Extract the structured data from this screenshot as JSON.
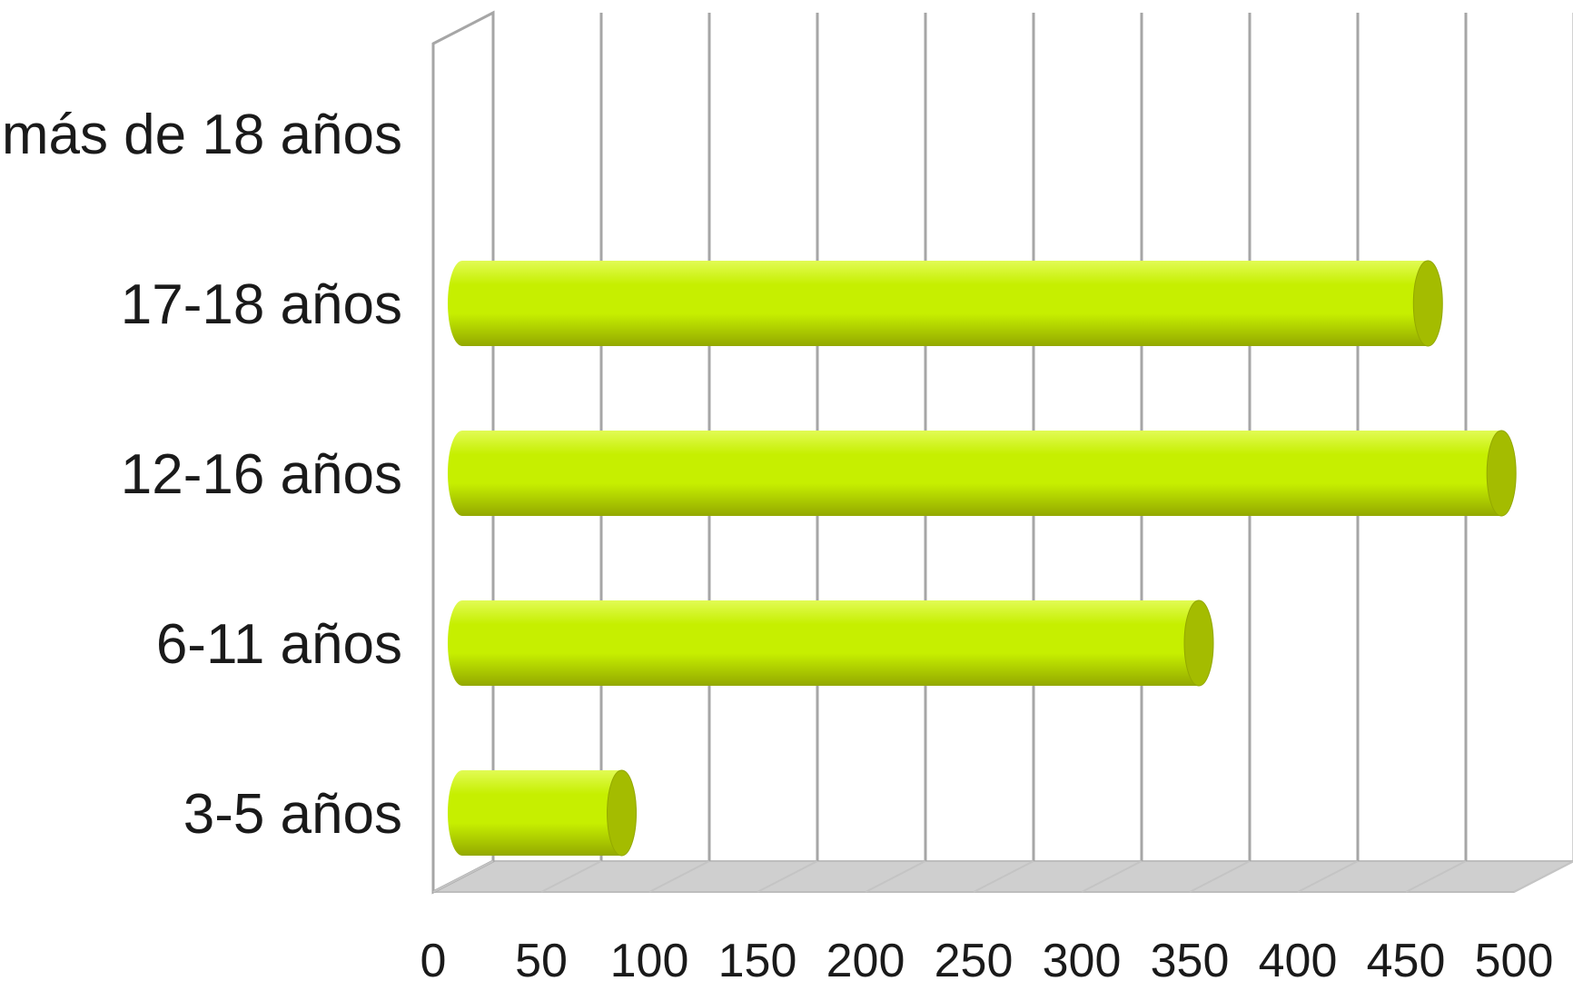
{
  "chart_data": {
    "type": "bar",
    "orientation": "horizontal",
    "style": "3d-cylinder",
    "categories": [
      "3-5 años",
      "6-11 años",
      "12-16 años",
      "17-18 años",
      "más de 18 años"
    ],
    "values": [
      83,
      350,
      490,
      456,
      0
    ],
    "xlim": [
      0,
      500
    ],
    "xticks": [
      0,
      50,
      100,
      150,
      200,
      250,
      300,
      350,
      400,
      450,
      500
    ],
    "grid": true,
    "legend": "none",
    "colors": {
      "bar_face": "#c6ef00",
      "bar_light": "#e2fb55",
      "bar_dark": "#93a800",
      "bar_cap": "#a4bc00",
      "grid": "#a6a6a6",
      "floor": "#cfcfcf",
      "floor_edge": "#bdbdbd"
    }
  }
}
